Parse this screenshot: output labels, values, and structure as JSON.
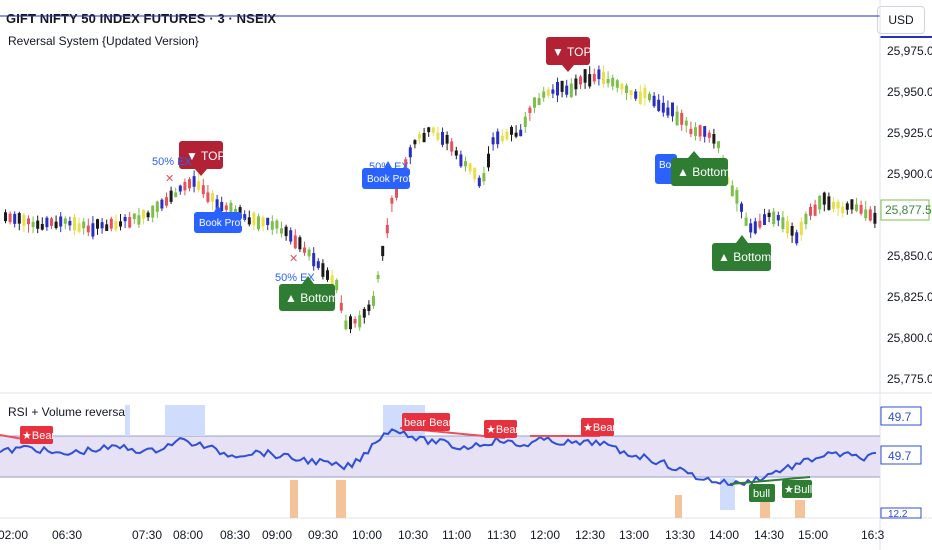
{
  "header": {
    "symbol_title": "GIFT NIFTY 50 INDEX FUTURES · 3 · NSEIX",
    "indicator_name": "Reversal System {Updated Version}",
    "currency_button": "USD"
  },
  "price_axis": {
    "ticks": [
      "25,975.0",
      "25,950.0",
      "25,925.0",
      "25,900.0",
      "25,875.0",
      "25,850.0",
      "25,825.0",
      "25,800.0",
      "25,775.0"
    ],
    "last_price": "25,877.5"
  },
  "time_axis": {
    "ticks": [
      "02:00",
      "06:30",
      "07:30",
      "08:00",
      "08:30",
      "09:00",
      "09:30",
      "10:00",
      "10:30",
      "11:00",
      "11:30",
      "12:00",
      "12:30",
      "13:00",
      "13:30",
      "14:00",
      "14:30",
      "15:00",
      "16:3"
    ]
  },
  "signals": {
    "top_1": "▼ TOP",
    "top_2": "▼ TOP",
    "bottom_1": "▲ Bottom",
    "bottom_2": "▲ Bottom",
    "bottom_3": "▲ Bottom",
    "book_profit_1": "Book Profit",
    "book_profit_2": "Book Profit",
    "book_profit_3": "Bo",
    "exit_1": "50% EX",
    "exit_2": "50% EX",
    "exit_3": "50% EX",
    "exit_mark": "✕"
  },
  "rsi_pane": {
    "title": "RSI + Volume reversal",
    "value_upper": "49.7",
    "value_lower": "49.7",
    "value_bottom": "12.2",
    "bear_1": "★Bear",
    "bear_2": "bear Bear",
    "bear_3": "★Bear",
    "bear_4": "★Bear",
    "bull_1": "bull",
    "bull_2": "★Bull"
  },
  "colors": {
    "bull_candle": "#7cc04a",
    "bear_candle": "#1a1a1a",
    "blue_candle": "#2a2ec0",
    "yellow_candle": "#e8e04a",
    "red_candle": "#e8505b",
    "top_label": "#b22234",
    "bottom_label": "#2e7d32",
    "book_profit_label": "#2962ff",
    "rsi_line": "#2f4fd6",
    "rsi_band": "#e6e1f5"
  }
}
